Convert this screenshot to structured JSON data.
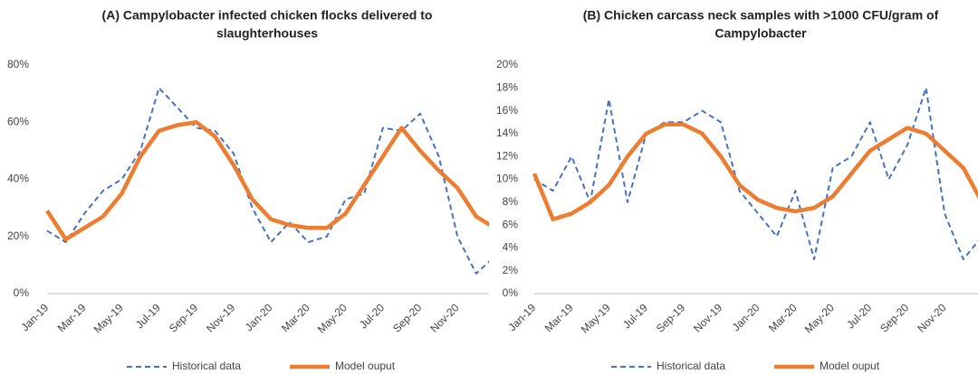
{
  "chart_data": [
    {
      "type": "line",
      "title": [
        "(A) Campylobacter infected chicken flocks delivered to",
        "slaughterhouses"
      ],
      "categories": [
        "Jan-19",
        null,
        "Mar-19",
        null,
        "May-19",
        null,
        "Jul-19",
        null,
        "Sep-19",
        null,
        "Nov-19",
        null,
        "Jan-20",
        null,
        "Mar-20",
        null,
        "May-20",
        null,
        "Jul-20",
        null,
        "Sep-20",
        null,
        "Nov-20",
        null,
        null
      ],
      "ylim": [
        0,
        80
      ],
      "yticks": [
        {
          "value": 0,
          "label": "0%"
        },
        {
          "value": 20,
          "label": "20%"
        },
        {
          "value": 40,
          "label": "40%"
        },
        {
          "value": 60,
          "label": "60%"
        },
        {
          "value": 80,
          "label": "80%"
        }
      ],
      "series": [
        {
          "name": "Historical data",
          "color": "#4472c4",
          "dashed": true,
          "values": [
            22,
            18,
            28,
            36,
            40,
            50,
            72,
            65,
            58,
            57,
            49,
            30,
            18,
            25,
            18,
            20,
            33,
            35,
            58,
            57,
            63,
            48,
            20,
            7,
            13
          ]
        },
        {
          "name": "Model ouput",
          "color": "#ed7d31",
          "dashed": false,
          "values": [
            29,
            19,
            23,
            27,
            35,
            48,
            57,
            59,
            60,
            55,
            45,
            33,
            26,
            24,
            23,
            23,
            28,
            38,
            48,
            58,
            50,
            43,
            37,
            27,
            23
          ]
        }
      ]
    },
    {
      "type": "line",
      "title": [
        "(B) Chicken carcass neck samples with >1000 CFU/gram of",
        "Campylobacter"
      ],
      "categories": [
        "Jan-19",
        null,
        "Mar-19",
        null,
        "May-19",
        null,
        "Jul-19",
        null,
        "Sep-19",
        null,
        "Nov-19",
        null,
        "Jan-20",
        null,
        "Mar-20",
        null,
        "May-20",
        null,
        "Jul-20",
        null,
        "Sep-20",
        null,
        "Nov-20",
        null,
        null
      ],
      "ylim": [
        0,
        20
      ],
      "yticks": [
        {
          "value": 0,
          "label": "0%"
        },
        {
          "value": 2,
          "label": "2%"
        },
        {
          "value": 4,
          "label": "4%"
        },
        {
          "value": 6,
          "label": "6%"
        },
        {
          "value": 8,
          "label": "8%"
        },
        {
          "value": 10,
          "label": "10%"
        },
        {
          "value": 12,
          "label": "12%"
        },
        {
          "value": 14,
          "label": "14%"
        },
        {
          "value": 16,
          "label": "16%"
        },
        {
          "value": 18,
          "label": "18%"
        },
        {
          "value": 20,
          "label": "20%"
        }
      ],
      "series": [
        {
          "name": "Historical data",
          "color": "#4472c4",
          "dashed": true,
          "values": [
            10,
            9,
            12,
            8,
            17,
            8,
            14,
            15,
            15,
            16,
            15,
            9,
            7,
            5,
            9,
            3,
            11,
            12,
            15,
            10,
            13,
            18,
            7,
            3,
            5
          ]
        },
        {
          "name": "Model ouput",
          "color": "#ed7d31",
          "dashed": false,
          "values": [
            10.5,
            6.5,
            7,
            8,
            9.5,
            12,
            14,
            14.8,
            14.8,
            14,
            12,
            9.5,
            8.2,
            7.5,
            7.2,
            7.5,
            8.5,
            10.5,
            12.5,
            13.5,
            14.5,
            14,
            12.5,
            11,
            8
          ]
        }
      ]
    }
  ]
}
